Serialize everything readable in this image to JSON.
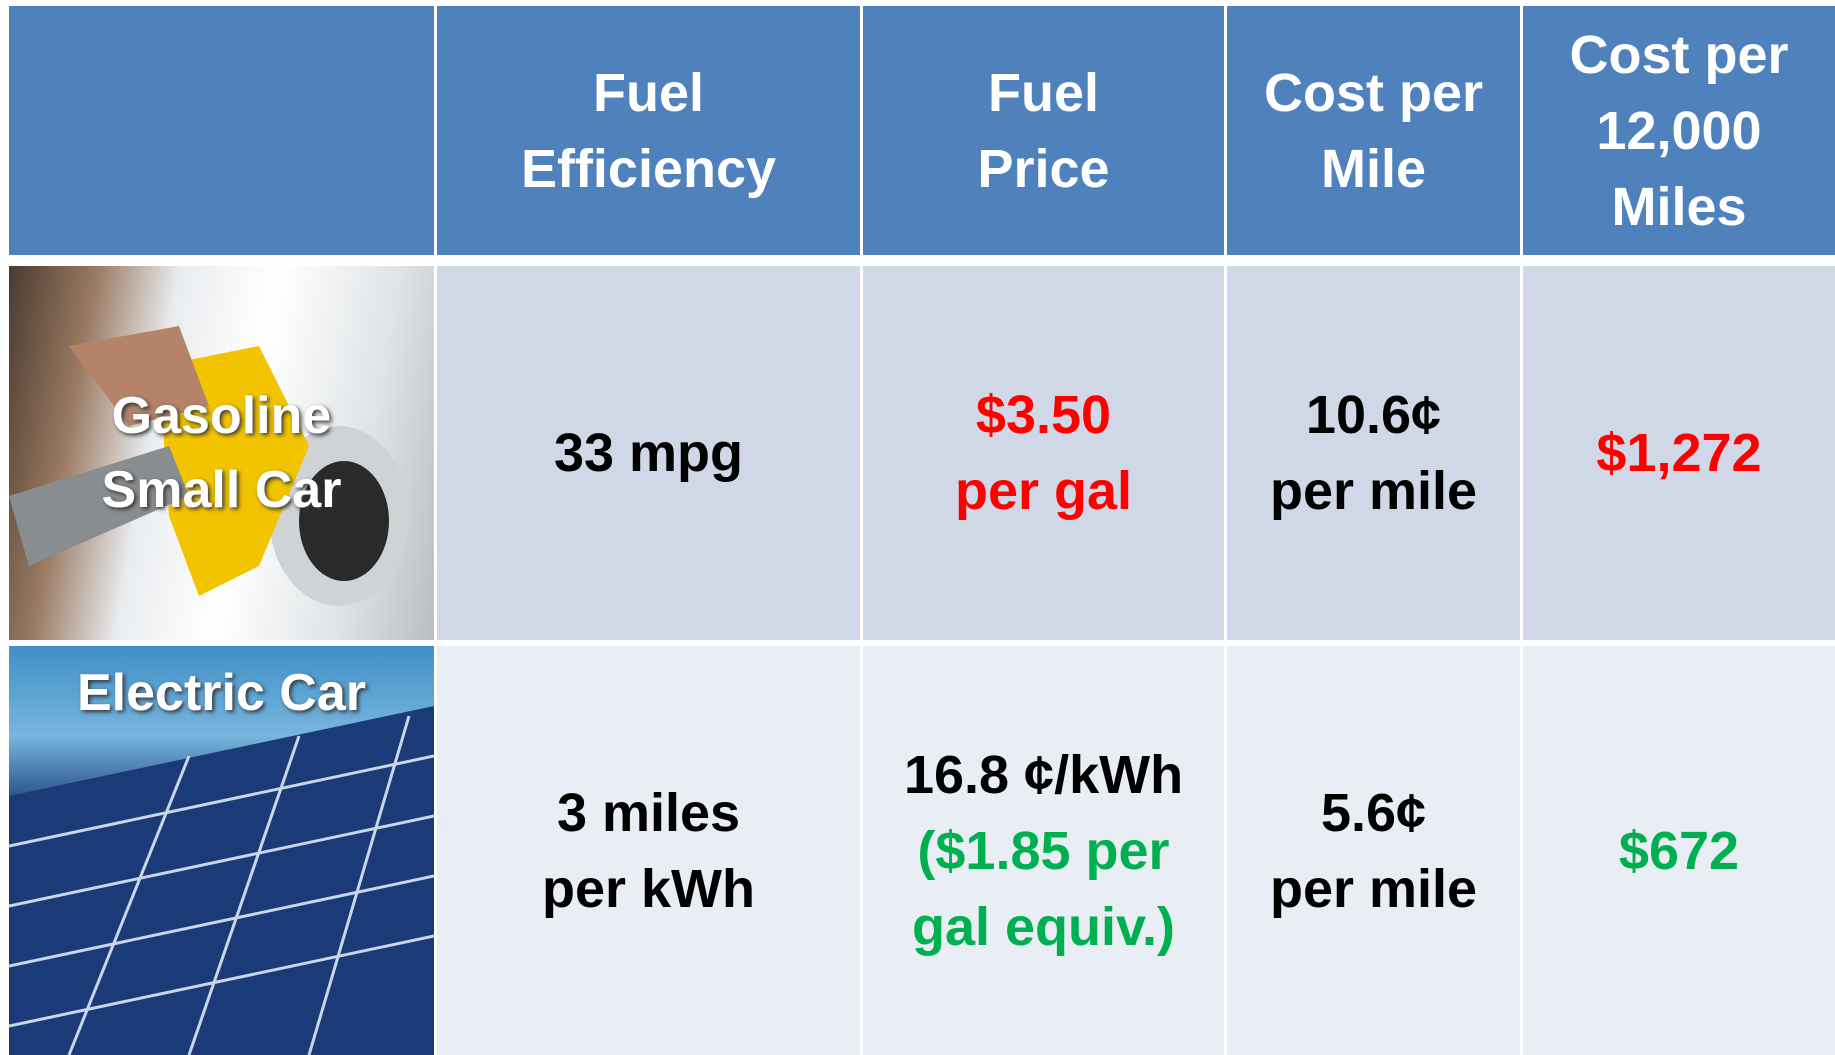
{
  "header": {
    "columns": [
      [
        "Fuel",
        "Efficiency"
      ],
      [
        "Fuel",
        "Price"
      ],
      [
        "Cost per",
        "Mile"
      ],
      [
        "Cost per",
        "12,000",
        "Miles"
      ]
    ]
  },
  "rows": [
    {
      "label": [
        "Gasoline",
        "Small Car"
      ],
      "cells": [
        [
          {
            "text": "33 mpg",
            "color": "#000000"
          }
        ],
        [
          {
            "text": "$3.50",
            "color": "#ff0000"
          },
          {
            "text": "per gal",
            "color": "#ff0000"
          }
        ],
        [
          {
            "text": "10.6¢",
            "color": "#000000"
          },
          {
            "text": "per mile",
            "color": "#000000"
          }
        ],
        [
          {
            "text": "$1,272",
            "color": "#ff0000"
          }
        ]
      ]
    },
    {
      "label": [
        "Electric Car"
      ],
      "cells": [
        [
          {
            "text": "3 miles",
            "color": "#000000"
          },
          {
            "text": "per kWh",
            "color": "#000000"
          }
        ],
        [
          {
            "text": "16.8 ¢/kWh",
            "color": "#000000"
          },
          {
            "text": "($1.85 per",
            "color": "#00b050"
          },
          {
            "text": "gal equiv.)",
            "color": "#00b050"
          }
        ],
        [
          {
            "text": "5.6¢",
            "color": "#000000"
          },
          {
            "text": "per mile",
            "color": "#000000"
          }
        ],
        [
          {
            "text": "$672",
            "color": "#00b050"
          }
        ]
      ]
    }
  ]
}
